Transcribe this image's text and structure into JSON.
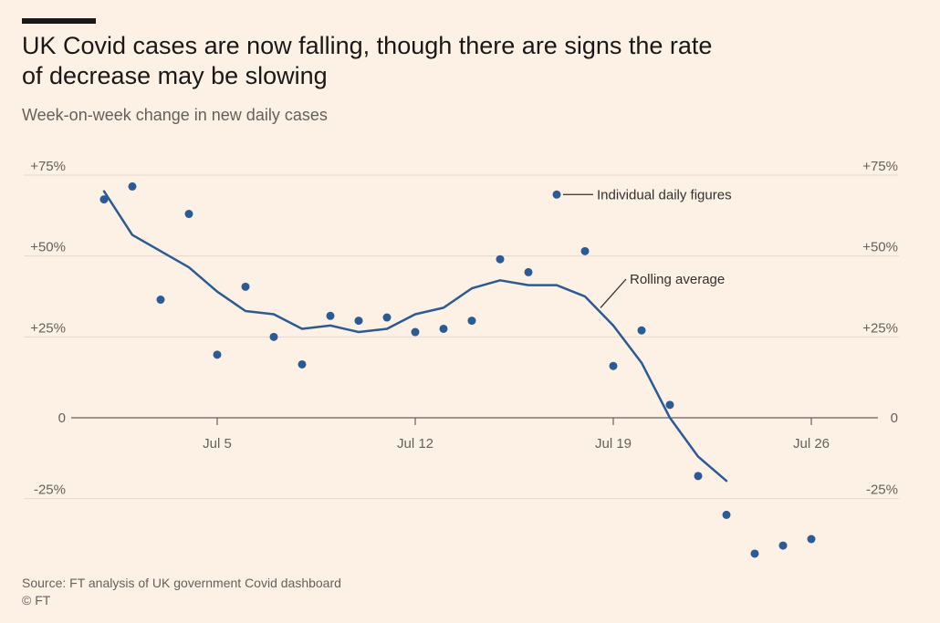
{
  "header": {
    "title": "UK Covid cases are now falling, though there are signs the rate of decrease may be slowing",
    "subtitle": "Week-on-week change in new daily cases"
  },
  "footer": {
    "source": "Source: FT analysis of UK government Covid dashboard",
    "copyright": "© FT"
  },
  "colors": {
    "background": "#fdf1e6",
    "series": "#2b5a94",
    "grid": "#e6d8cb",
    "axis": "#66605c"
  },
  "chart_data": {
    "type": "line+scatter",
    "title": "UK Covid cases are now falling, though there are signs the rate of decrease may be slowing",
    "subtitle": "Week-on-week change in new daily cases",
    "x_unit": "day of July 2021",
    "xlim": [
      0,
      29
    ],
    "ylim": [
      -47,
      78
    ],
    "y_ticks": [
      {
        "value": 75,
        "label": "+75%"
      },
      {
        "value": 50,
        "label": "+50%"
      },
      {
        "value": 25,
        "label": "+25%"
      },
      {
        "value": 0,
        "label": "0"
      },
      {
        "value": -25,
        "label": "-25%"
      }
    ],
    "x_ticks": [
      {
        "value": 5,
        "label": "Jul 5"
      },
      {
        "value": 12,
        "label": "Jul 12"
      },
      {
        "value": 19,
        "label": "Jul 19"
      },
      {
        "value": 26,
        "label": "Jul 26"
      }
    ],
    "series": [
      {
        "name": "Individual daily figures",
        "kind": "scatter",
        "x": [
          1,
          2,
          3,
          4,
          5,
          6,
          7,
          8,
          9,
          10,
          11,
          12,
          13,
          14,
          15,
          16,
          17,
          18,
          19,
          20,
          21,
          22,
          23,
          24,
          25,
          26
        ],
        "values": [
          67.5,
          71.5,
          36.5,
          63,
          19.5,
          40.5,
          25,
          16.5,
          31.5,
          30,
          31,
          26.5,
          27.5,
          30,
          49,
          45,
          69,
          51.5,
          16,
          27,
          4,
          -18,
          -30,
          -42,
          -39.5,
          -37.5
        ]
      },
      {
        "name": "Rolling average",
        "kind": "line",
        "x": [
          1,
          2,
          3,
          4,
          5,
          6,
          7,
          8,
          9,
          10,
          11,
          12,
          13,
          14,
          15,
          16,
          17,
          18,
          19,
          20,
          21,
          22,
          23
        ],
        "values": [
          70,
          56.5,
          51.5,
          46.5,
          39,
          33,
          32,
          27.5,
          28.5,
          26.5,
          27.5,
          32,
          34,
          40,
          42.5,
          41,
          41,
          37.5,
          28.5,
          17,
          0,
          -12,
          -19.5
        ]
      }
    ],
    "annotations": [
      {
        "label": "Individual daily figures",
        "series": "Individual daily figures"
      },
      {
        "label": "Rolling average",
        "series": "Rolling average"
      }
    ]
  }
}
